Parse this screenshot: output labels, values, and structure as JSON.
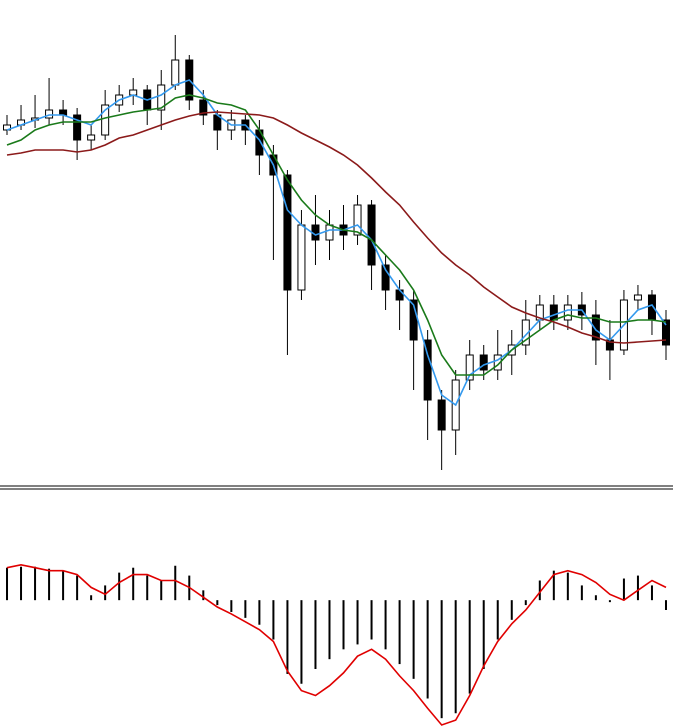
{
  "chart_data": [
    {
      "type": "candlestick",
      "ylim": [
        15,
        500
      ],
      "color": "#000000",
      "up_color": "#ffffff",
      "open": [
        370,
        375,
        380,
        382,
        390,
        385,
        360,
        365,
        395,
        405,
        410,
        390,
        415,
        440,
        400,
        385,
        370,
        380,
        370,
        345,
        325,
        210,
        275,
        260,
        275,
        265,
        295,
        235,
        210,
        200,
        160,
        100,
        70,
        120,
        145,
        130,
        145,
        155,
        180,
        195,
        180,
        195,
        185,
        160,
        150,
        200,
        205,
        180
      ],
      "high": [
        385,
        395,
        405,
        422,
        400,
        392,
        375,
        410,
        415,
        422,
        415,
        430,
        465,
        445,
        410,
        390,
        390,
        385,
        380,
        355,
        330,
        290,
        305,
        290,
        295,
        305,
        300,
        245,
        220,
        210,
        170,
        110,
        130,
        160,
        155,
        170,
        170,
        200,
        205,
        205,
        205,
        208,
        200,
        180,
        210,
        215,
        210,
        190
      ],
      "low": [
        365,
        370,
        372,
        375,
        375,
        340,
        350,
        360,
        388,
        395,
        375,
        370,
        410,
        390,
        375,
        350,
        360,
        355,
        325,
        240,
        145,
        200,
        235,
        240,
        250,
        255,
        210,
        190,
        170,
        110,
        60,
        30,
        45,
        110,
        120,
        120,
        125,
        145,
        170,
        170,
        170,
        170,
        135,
        120,
        145,
        190,
        165,
        140
      ],
      "close": [
        375,
        380,
        382,
        390,
        385,
        360,
        365,
        395,
        405,
        410,
        390,
        415,
        440,
        400,
        385,
        370,
        380,
        370,
        345,
        325,
        210,
        275,
        260,
        275,
        265,
        295,
        235,
        210,
        200,
        160,
        100,
        70,
        120,
        145,
        130,
        145,
        155,
        180,
        195,
        180,
        195,
        185,
        160,
        150,
        200,
        205,
        180,
        155
      ],
      "lines": [
        {
          "color": "#3399ee",
          "values": [
            370,
            375,
            380,
            385,
            385,
            380,
            375,
            390,
            400,
            405,
            400,
            405,
            415,
            420,
            405,
            385,
            375,
            375,
            360,
            335,
            290,
            275,
            265,
            270,
            270,
            275,
            260,
            230,
            210,
            195,
            145,
            105,
            95,
            125,
            135,
            140,
            150,
            165,
            180,
            185,
            190,
            190,
            170,
            160,
            175,
            190,
            195,
            175
          ]
        },
        {
          "color": "#1a7a1a",
          "values": [
            355,
            360,
            370,
            375,
            378,
            378,
            378,
            382,
            385,
            388,
            390,
            392,
            402,
            405,
            402,
            397,
            395,
            390,
            370,
            345,
            320,
            300,
            285,
            275,
            270,
            268,
            260,
            245,
            230,
            210,
            180,
            145,
            125,
            125,
            125,
            135,
            150,
            160,
            170,
            180,
            185,
            182,
            182,
            178,
            178,
            180,
            180,
            178
          ]
        },
        {
          "color": "#8b1a1a",
          "values": [
            345,
            347,
            350,
            350,
            350,
            348,
            350,
            355,
            362,
            365,
            370,
            375,
            380,
            384,
            387,
            388,
            387,
            386,
            385,
            382,
            375,
            367,
            360,
            353,
            345,
            335,
            322,
            308,
            295,
            278,
            262,
            247,
            235,
            225,
            213,
            203,
            193,
            187,
            182,
            178,
            173,
            167,
            163,
            158,
            157,
            158,
            159,
            160
          ]
        }
      ]
    },
    {
      "type": "histogram-line",
      "ylim": [
        -130,
        110
      ],
      "color": "#000000",
      "values": [
        33,
        34,
        34,
        32,
        30,
        25,
        5,
        15,
        28,
        33,
        25,
        20,
        35,
        25,
        10,
        -5,
        -12,
        -18,
        -25,
        -40,
        -75,
        -85,
        -70,
        -60,
        -50,
        -45,
        -40,
        -50,
        -65,
        -80,
        -100,
        -120,
        -115,
        -95,
        -70,
        -40,
        -20,
        -5,
        20,
        30,
        28,
        15,
        5,
        -2,
        22,
        25,
        15,
        -10
      ],
      "lines": [
        {
          "color": "#e00000",
          "values": [
            33,
            36,
            33,
            30,
            30,
            26,
            13,
            6,
            18,
            26,
            26,
            20,
            20,
            13,
            3,
            -7,
            -14,
            -22,
            -30,
            -42,
            -72,
            -92,
            -97,
            -87,
            -74,
            -57,
            -50,
            -60,
            -77,
            -92,
            -110,
            -127,
            -122,
            -97,
            -67,
            -42,
            -24,
            -10,
            8,
            26,
            30,
            26,
            18,
            6,
            0,
            10,
            20,
            13
          ]
        }
      ]
    }
  ]
}
